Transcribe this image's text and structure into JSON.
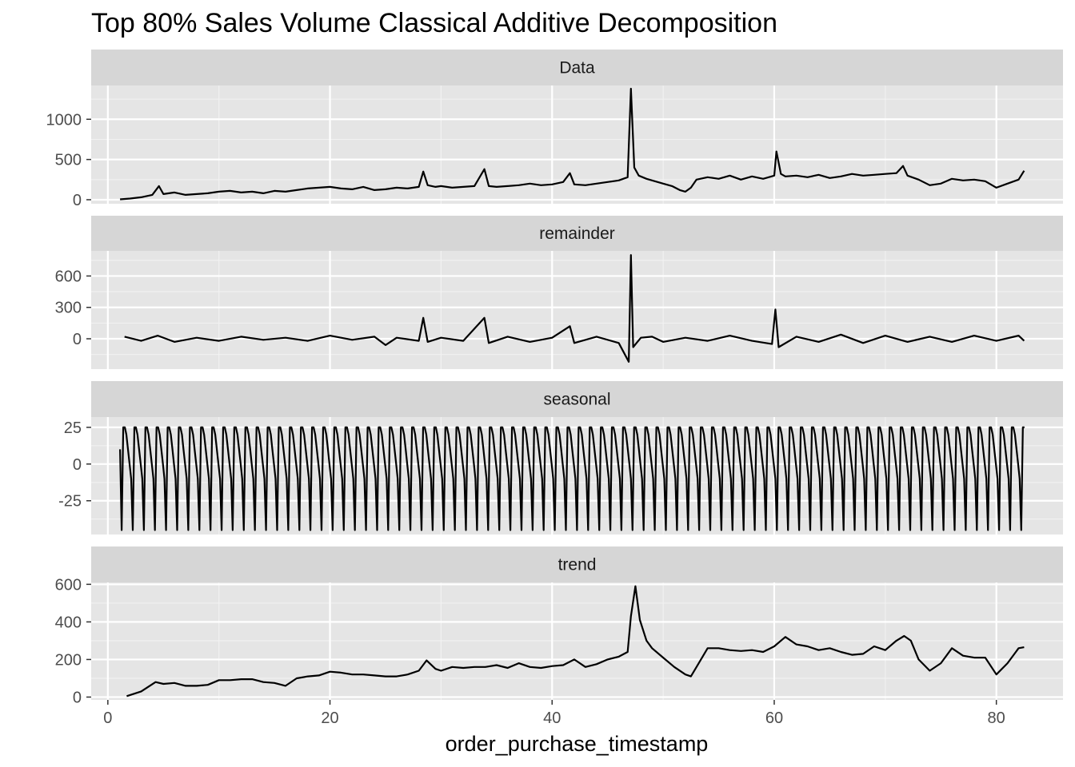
{
  "chart_data": {
    "type": "line",
    "title": "Top 80% Sales Volume Classical Additive Decomposition",
    "xlabel": "order_purchase_timestamp",
    "xlim": [
      -1.5,
      86
    ],
    "x_ticks": [
      "0",
      "20",
      "40",
      "60",
      "80"
    ],
    "x_tick_values": [
      0,
      20,
      40,
      60,
      80
    ],
    "grid": true,
    "line_color": "#000000",
    "panel_background": "#e5e5e5",
    "strip_background": "#d6d6d6",
    "panels": [
      {
        "name": "Data",
        "ylim": [
          -50,
          1420
        ],
        "y_ticks": [
          "0",
          "500",
          "1000"
        ],
        "y_tick_values": [
          0,
          500,
          1000
        ],
        "x": [
          1.1,
          2,
          3,
          4,
          4.6,
          5,
          6,
          7,
          8,
          9,
          10,
          11,
          12,
          13,
          14,
          15,
          16,
          17,
          18,
          19,
          20,
          21,
          22,
          23,
          24,
          25,
          26,
          27,
          28,
          28.4,
          28.8,
          29.5,
          30,
          31,
          32,
          33,
          33.9,
          34.3,
          35,
          36,
          37,
          38,
          39,
          40,
          41,
          41.6,
          42,
          43,
          44,
          45,
          46,
          46.8,
          47.1,
          47.4,
          47.8,
          48.5,
          49,
          50,
          50.8,
          51.5,
          52,
          52.5,
          53,
          54,
          55,
          56,
          57,
          58,
          59,
          60,
          60.2,
          60.6,
          61,
          62,
          63,
          64,
          65,
          66,
          67,
          68,
          69,
          70,
          71,
          71.6,
          72,
          73,
          74,
          75,
          76,
          77,
          78,
          79,
          80,
          81,
          82,
          82.5
        ],
        "values": [
          5,
          15,
          30,
          60,
          170,
          70,
          90,
          60,
          70,
          80,
          100,
          110,
          90,
          100,
          80,
          110,
          100,
          120,
          140,
          150,
          160,
          140,
          130,
          160,
          120,
          130,
          150,
          140,
          160,
          350,
          180,
          160,
          170,
          150,
          160,
          170,
          380,
          170,
          160,
          170,
          180,
          200,
          180,
          190,
          220,
          330,
          190,
          180,
          200,
          220,
          240,
          280,
          1380,
          400,
          300,
          260,
          240,
          200,
          170,
          120,
          100,
          150,
          250,
          280,
          260,
          300,
          250,
          290,
          260,
          300,
          600,
          320,
          290,
          300,
          280,
          310,
          270,
          290,
          320,
          300,
          310,
          320,
          330,
          420,
          300,
          250,
          180,
          200,
          260,
          240,
          250,
          230,
          150,
          200,
          250,
          360
        ]
      },
      {
        "name": "remainder",
        "ylim": [
          -290,
          840
        ],
        "y_ticks": [
          "0",
          "300",
          "600"
        ],
        "y_tick_values": [
          0,
          300,
          600
        ],
        "x": [
          1.5,
          3,
          4.5,
          6,
          8,
          10,
          12,
          14,
          16,
          18,
          20,
          22,
          24,
          25,
          26,
          28,
          28.4,
          28.8,
          30,
          32,
          33.9,
          34.3,
          36,
          38,
          40,
          41.6,
          42,
          44,
          46,
          46.9,
          47.1,
          47.3,
          47.6,
          48,
          49,
          50,
          52,
          54,
          56,
          58,
          59.8,
          60.1,
          60.4,
          62,
          64,
          66,
          68,
          70,
          72,
          74,
          76,
          78,
          80,
          82,
          82.5
        ],
        "values": [
          20,
          -20,
          30,
          -30,
          10,
          -20,
          20,
          -10,
          10,
          -20,
          30,
          -10,
          20,
          -60,
          10,
          -20,
          200,
          -30,
          10,
          -20,
          200,
          -40,
          20,
          -30,
          10,
          120,
          -40,
          20,
          -40,
          -220,
          800,
          -80,
          -40,
          10,
          20,
          -30,
          10,
          -20,
          30,
          -20,
          -50,
          280,
          -80,
          20,
          -30,
          40,
          -40,
          30,
          -30,
          20,
          -30,
          30,
          -20,
          30,
          -20
        ]
      },
      {
        "name": "seasonal",
        "ylim": [
          -48,
          32
        ],
        "y_ticks": [
          "-25",
          "0",
          "25"
        ],
        "y_tick_values": [
          -25,
          0,
          25
        ],
        "period": 1,
        "weekly_pattern": [
          -45,
          25,
          25,
          20,
          10,
          0,
          -10
        ],
        "x_start": 1.1,
        "x_end": 82.6,
        "values": [
          10
        ]
      },
      {
        "name": "trend",
        "ylim": [
          -15,
          610
        ],
        "y_ticks": [
          "0",
          "200",
          "400",
          "600"
        ],
        "y_tick_values": [
          0,
          200,
          400,
          600
        ],
        "x": [
          1.7,
          3,
          4.3,
          5,
          6,
          7,
          8,
          9,
          10,
          11,
          12,
          13,
          14,
          15,
          16,
          17,
          18,
          19,
          20,
          21,
          22,
          23,
          24,
          25,
          26,
          27,
          28,
          28.7,
          29.5,
          30,
          31,
          32,
          33,
          34,
          35,
          36,
          37,
          38,
          39,
          40,
          41,
          42,
          43,
          44,
          45,
          46,
          46.8,
          47.1,
          47.5,
          47.9,
          48.5,
          49,
          50,
          51,
          52,
          52.5,
          53,
          54,
          55,
          56,
          57,
          58,
          59,
          60,
          61,
          62,
          63,
          64,
          65,
          66,
          67,
          68,
          69,
          70,
          71,
          71.7,
          72.3,
          73,
          74,
          75,
          76,
          77,
          78,
          79,
          80,
          81,
          82,
          82.5
        ],
        "values": [
          5,
          30,
          80,
          70,
          75,
          60,
          60,
          65,
          90,
          90,
          95,
          95,
          80,
          75,
          60,
          100,
          110,
          115,
          135,
          130,
          120,
          120,
          115,
          110,
          110,
          120,
          140,
          195,
          150,
          140,
          160,
          155,
          160,
          160,
          170,
          155,
          180,
          160,
          155,
          165,
          170,
          200,
          160,
          175,
          200,
          215,
          240,
          430,
          590,
          410,
          300,
          260,
          210,
          160,
          120,
          110,
          160,
          260,
          260,
          250,
          245,
          250,
          240,
          270,
          320,
          280,
          270,
          250,
          260,
          240,
          225,
          230,
          270,
          250,
          300,
          325,
          300,
          200,
          140,
          180,
          260,
          220,
          210,
          210,
          120,
          180,
          260,
          265
        ]
      }
    ]
  }
}
